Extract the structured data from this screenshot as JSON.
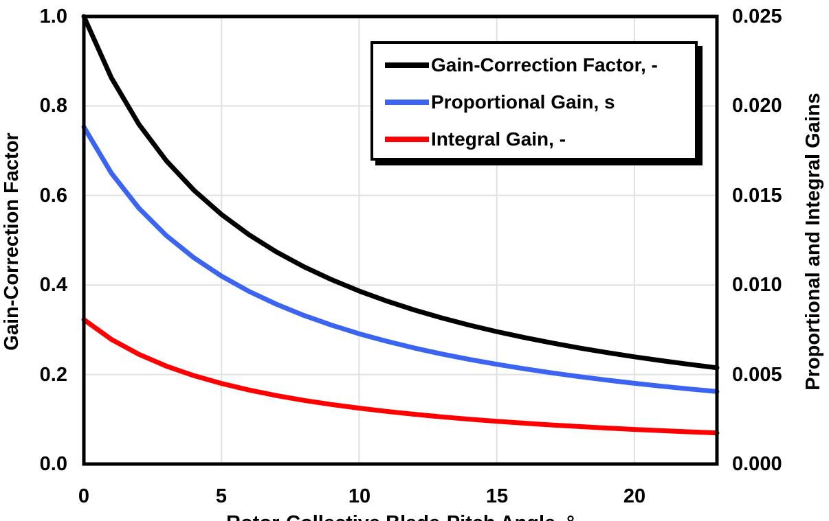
{
  "background": "#FFFFFF",
  "chart_data": {
    "type": "line",
    "title": "",
    "x": [
      0,
      1,
      2,
      3,
      4,
      5,
      6,
      7,
      8,
      9,
      10,
      11,
      12,
      13,
      14,
      15,
      16,
      17,
      18,
      19,
      20,
      21,
      22,
      23
    ],
    "series": [
      {
        "name": "Gain-Correction Factor, -",
        "axis": "left",
        "color": "#000000",
        "values": [
          1.0,
          0.8631,
          0.7591,
          0.6775,
          0.6117,
          0.5576,
          0.5123,
          0.4738,
          0.4406,
          0.4119,
          0.3866,
          0.3643,
          0.3444,
          0.3265,
          0.3104,
          0.2959,
          0.2826,
          0.2705,
          0.2593,
          0.2491,
          0.2396,
          0.2308,
          0.2227,
          0.2151
        ]
      },
      {
        "name": "Proportional Gain, s",
        "axis": "right",
        "color": "#3B64F0",
        "values": [
          0.018827,
          0.01625,
          0.014291,
          0.012755,
          0.011517,
          0.010498,
          0.009645,
          0.008921,
          0.008296,
          0.007755,
          0.007279,
          0.006859,
          0.006484,
          0.006147,
          0.005843,
          0.005571,
          0.005321,
          0.005092,
          0.004882,
          0.004689,
          0.004511,
          0.004346,
          0.004191,
          0.00405
        ]
      },
      {
        "name": "Integral Gain, -",
        "axis": "right",
        "color": "#FF0000",
        "values": [
          0.008069,
          0.006964,
          0.006126,
          0.005467,
          0.004936,
          0.0045,
          0.004134,
          0.003823,
          0.003556,
          0.003323,
          0.00312,
          0.00294,
          0.00278,
          0.002634,
          0.002504,
          0.002387,
          0.002281,
          0.002183,
          0.002093,
          0.00201,
          0.001934,
          0.001863,
          0.001797,
          0.001736
        ]
      }
    ],
    "axes": {
      "x": {
        "label": "Rotor-Collective Blade-Pitch Angle, °",
        "min": 0,
        "max": 23,
        "ticks": [
          0,
          5,
          10,
          15,
          20
        ],
        "tick_labels": [
          "0",
          "5",
          "10",
          "15",
          "20"
        ]
      },
      "left": {
        "label": "Gain-Correction Factor",
        "min": 0.0,
        "max": 1.0,
        "ticks": [
          1.0,
          0.8,
          0.6,
          0.4,
          0.2,
          0.0
        ],
        "tick_labels": [
          "1.0",
          "0.8",
          "0.6",
          "0.4",
          "0.2",
          "0.0"
        ]
      },
      "right": {
        "label": "Proportional and Integral Gains",
        "min": 0.0,
        "max": 0.025,
        "ticks": [
          0.025,
          0.02,
          0.015,
          0.01,
          0.005,
          0.0
        ],
        "tick_labels": [
          "0.025",
          "0.020",
          "0.015",
          "0.010",
          "0.005",
          "0.000"
        ]
      }
    },
    "grid": {
      "show": true,
      "color": "#E0E0E0"
    },
    "legend": {
      "position": "top-center-inside",
      "border_color": "#000000",
      "shadow": true,
      "items": [
        "Gain-Correction Factor, -",
        "Proportional Gain, s",
        "Integral Gain, -"
      ]
    }
  }
}
